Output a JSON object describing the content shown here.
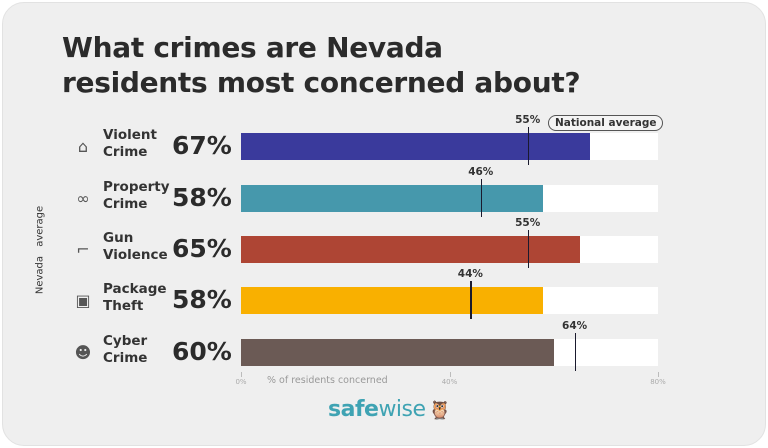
{
  "title_line1": "What crimes are Nevada",
  "title_line2": "residents most concerned about?",
  "y_axis_label": "Nevada average",
  "national_average_label": "National average",
  "logo": {
    "text_bold": "safe",
    "text_light": "wise",
    "icon": "owl-icon"
  },
  "chart_data": {
    "type": "bar",
    "orientation": "horizontal",
    "title": "What crimes are Nevada residents most concerned about?",
    "xlabel": "% of residents concerned",
    "ylabel": "Nevada average",
    "xlim": [
      0,
      80
    ],
    "xticks": [
      "0%",
      "40%",
      "80%"
    ],
    "categories": [
      {
        "line1": "Violent",
        "line2": "Crime",
        "icon": "house-icon"
      },
      {
        "line1": "Property",
        "line2": "Crime",
        "icon": "handcuffs-icon"
      },
      {
        "line1": "Gun",
        "line2": "Violence",
        "icon": "gun-icon"
      },
      {
        "line1": "Package",
        "line2": "Theft",
        "icon": "package-icon"
      },
      {
        "line1": "Cyber",
        "line2": "Crime",
        "icon": "hacker-icon"
      }
    ],
    "series": [
      {
        "name": "Nevada average",
        "values": [
          67,
          58,
          65,
          58,
          60
        ],
        "labels": [
          "67%",
          "58%",
          "65%",
          "58%",
          "60%"
        ]
      },
      {
        "name": "National average",
        "values": [
          55,
          46,
          55,
          44,
          64
        ],
        "labels": [
          "55%",
          "46%",
          "55%",
          "44%",
          "64%"
        ]
      }
    ],
    "colors": [
      "#3a3a9c",
      "#4698ac",
      "#ae4534",
      "#f9b000",
      "#6b5a55"
    ]
  }
}
